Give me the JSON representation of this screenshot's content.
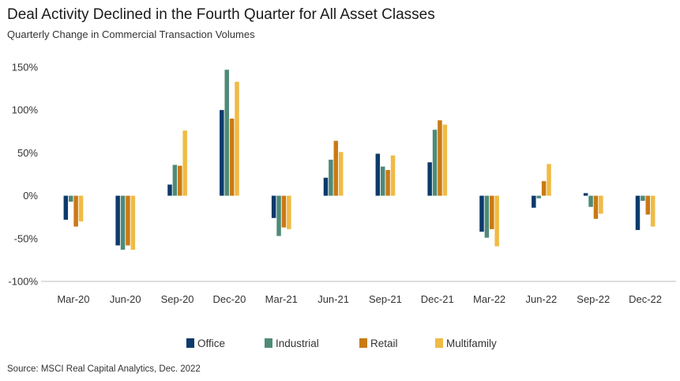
{
  "title": "Deal Activity Declined in the Fourth Quarter for All Asset Classes",
  "subtitle": "Quarterly Change in Commercial Transaction Volumes",
  "source": "Source: MSCI Real Capital Analytics, Dec. 2022",
  "chart_data": {
    "type": "bar",
    "categories": [
      "Mar-20",
      "Jun-20",
      "Sep-20",
      "Dec-20",
      "Mar-21",
      "Jun-21",
      "Sep-21",
      "Dec-21",
      "Mar-22",
      "Jun-22",
      "Sep-22",
      "Dec-22"
    ],
    "series": [
      {
        "name": "Office",
        "color": "#0d3a6b",
        "values": [
          -28,
          -58,
          13,
          100,
          -26,
          21,
          49,
          39,
          -42,
          -14,
          3,
          -40
        ]
      },
      {
        "name": "Industrial",
        "color": "#4f8a78",
        "values": [
          -7,
          -63,
          36,
          147,
          -47,
          42,
          34,
          77,
          -49,
          -3,
          -13,
          -6
        ]
      },
      {
        "name": "Retail",
        "color": "#c97a14",
        "values": [
          -36,
          -58,
          35,
          90,
          -37,
          64,
          30,
          88,
          -39,
          17,
          -27,
          -22
        ]
      },
      {
        "name": "Multifamily",
        "color": "#f0bb45",
        "values": [
          -30,
          -63,
          76,
          133,
          -39,
          51,
          47,
          83,
          -59,
          37,
          -21,
          -36
        ]
      }
    ],
    "ylim": [
      -100,
      150
    ],
    "yticks": [
      -100,
      -50,
      0,
      50,
      100,
      150
    ],
    "ytick_labels": [
      "-100%",
      "-50%",
      "0%",
      "50%",
      "100%",
      "150%"
    ],
    "legend_position": "bottom-center",
    "grid": false
  }
}
